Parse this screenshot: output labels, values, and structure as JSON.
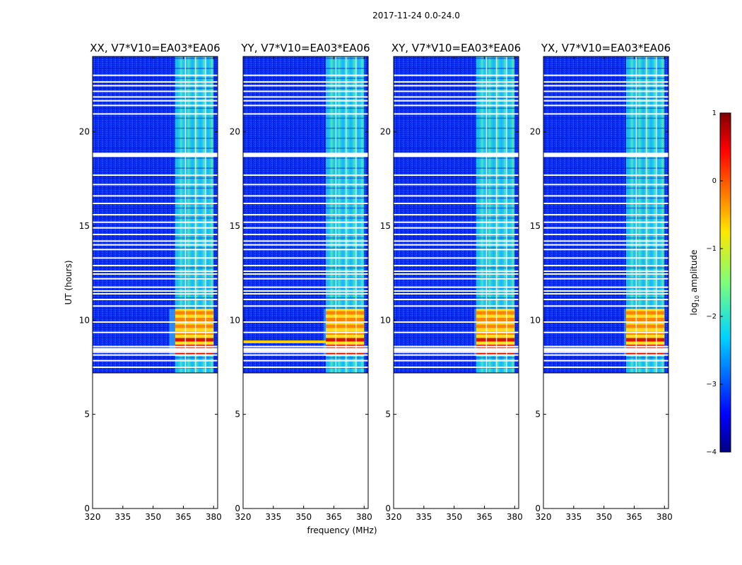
{
  "figure_title": "2017-11-24 0.0-24.0",
  "chart_data": {
    "type": "heatmap",
    "title": "2017-11-24 0.0-24.0",
    "xlabel": "frequency (MHz)",
    "ylabel": "UT (hours)",
    "xlim": [
      320,
      382
    ],
    "ylim": [
      0,
      24
    ],
    "xticks": [
      320,
      335,
      350,
      365,
      380
    ],
    "yticks": [
      0,
      5,
      10,
      15,
      20
    ],
    "data_start_hour": 7.2,
    "data_end_hour": 24,
    "panels": [
      {
        "title": "XX, V7*V10=EA03*EA06",
        "polarization": "XX",
        "strong_rfi_start_mhz": 358,
        "narrowband_line": false
      },
      {
        "title": "YY, V7*V10=EA03*EA06",
        "polarization": "YY",
        "strong_rfi_start_mhz": 360,
        "narrowband_line": true
      },
      {
        "title": "XY, V7*V10=EA03*EA06",
        "polarization": "XY",
        "strong_rfi_start_mhz": 360,
        "narrowband_line": false
      },
      {
        "title": "YX, V7*V10=EA03*EA06",
        "polarization": "YX",
        "strong_rfi_start_mhz": 360,
        "narrowband_line": false
      }
    ],
    "rfi_band_mhz": [
      361,
      380
    ],
    "rfi_subband_edges_mhz": [
      366,
      371,
      376
    ],
    "strong_rfi_hours": [
      8.1,
      10.6
    ],
    "flagged_gaps_hours": [
      7.5,
      7.85,
      8.15,
      8.3,
      8.45,
      8.6,
      9.35,
      9.9,
      10.75,
      11.1,
      11.4,
      11.55,
      11.75,
      12.2,
      12.45,
      12.6,
      12.9,
      13.3,
      13.75,
      14.0,
      14.2,
      14.55,
      14.9,
      15.2,
      15.6,
      16.2,
      16.6,
      17.2,
      17.7,
      18.75,
      18.85,
      20.95,
      21.4,
      21.65,
      21.85,
      22.15,
      22.45,
      22.65,
      23.0
    ],
    "colorbar": {
      "label": "log10 amplitude",
      "label_main": "log",
      "label_sub": "10",
      "label_suffix": " amplitude",
      "min": -4,
      "max": 1,
      "ticks": [
        "1",
        "0",
        "−1",
        "−2",
        "−3",
        "−4"
      ],
      "colormap": "jet"
    }
  }
}
